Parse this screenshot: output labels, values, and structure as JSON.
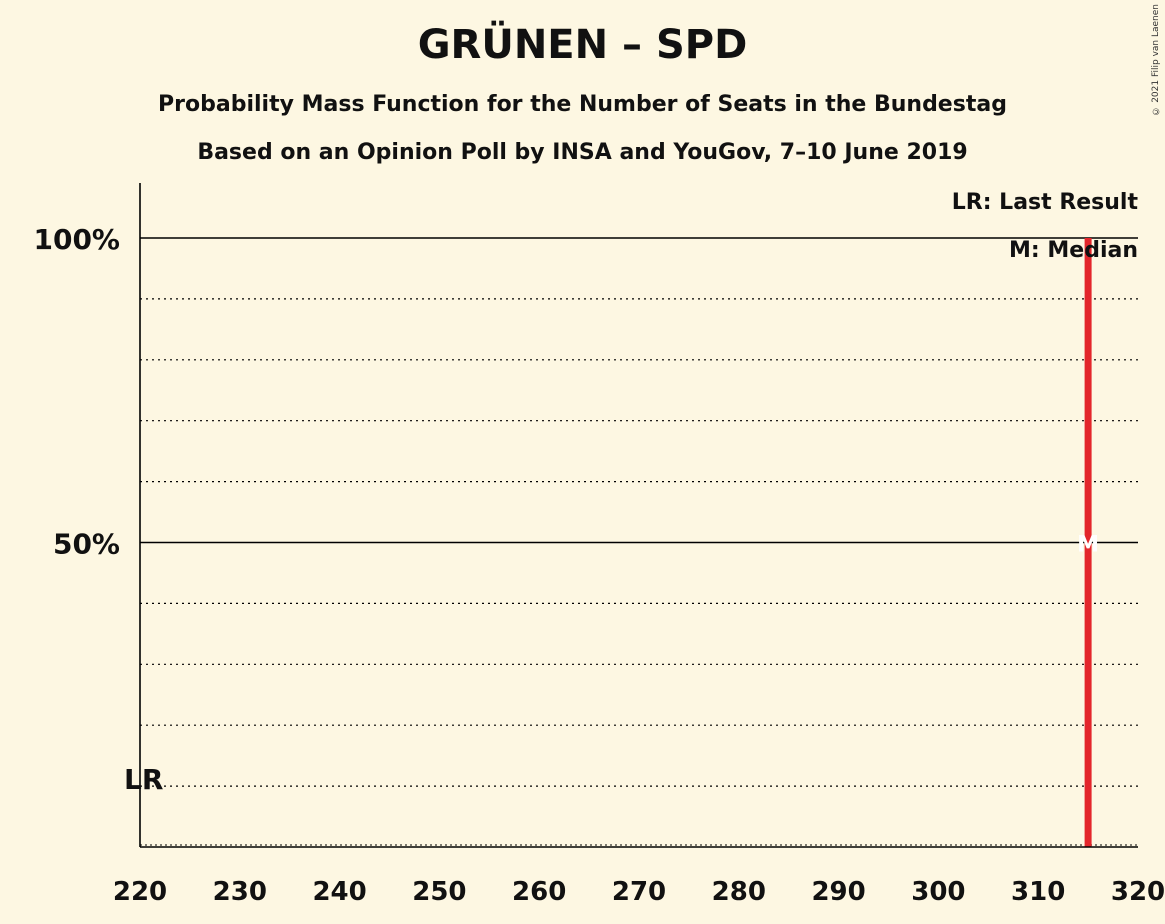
{
  "title": "GRÜNEN – SPD",
  "subtitle_1": "Probability Mass Function for the Number of Seats in the Bundestag",
  "subtitle_2": "Based on an Opinion Poll by INSA and YouGov, 7–10 June 2019",
  "copyright": "© 2021 Filip van Laenen",
  "legend": {
    "last_result": "LR: Last Result",
    "median": "M: Median"
  },
  "markers": {
    "lr_label": "LR",
    "median_label": "M"
  },
  "colors": {
    "background": "#fdf7e2",
    "bar": "#e3262b",
    "axis": "#000000"
  },
  "chart_data": {
    "type": "bar",
    "title": "GRÜNEN – SPD",
    "xlabel": "",
    "ylabel": "",
    "xlim": [
      220,
      320
    ],
    "ylim": [
      0,
      1.1
    ],
    "x_ticks": [
      "220",
      "230",
      "240",
      "250",
      "260",
      "270",
      "280",
      "290",
      "300",
      "310",
      "320"
    ],
    "y_ticks": [
      {
        "value": 0.5,
        "label": "50%"
      },
      {
        "value": 1.0,
        "label": "100%"
      }
    ],
    "gridlines_dotted": [
      0.1,
      0.2,
      0.3,
      0.4,
      0.6,
      0.7,
      0.8,
      0.9
    ],
    "series": [
      {
        "x": [
          315
        ],
        "values": [
          1.0
        ]
      }
    ],
    "last_result": 220,
    "median": 315,
    "legend_position": "top-right"
  }
}
